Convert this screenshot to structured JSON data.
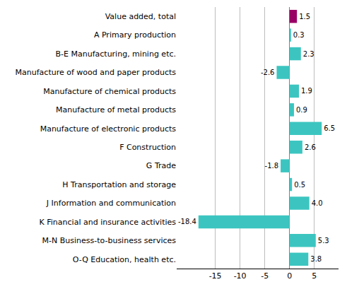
{
  "chart_data": {
    "type": "bar",
    "orientation": "horizontal",
    "categories": [
      "Value added, total",
      "A Primary production",
      "B-E Manufacturing, mining etc.",
      "Manufacture of wood and paper products",
      "Manufacture of chemical products",
      "Manufacture of metal products",
      "Manufacture of electronic products",
      "F Construction",
      "G Trade",
      "H Transportation and storage",
      "J Information and communication",
      "K Financial and insurance activities",
      "M-N Business-to-business services",
      "O-Q Education, health etc."
    ],
    "values": [
      1.5,
      0.3,
      2.3,
      -2.6,
      1.9,
      0.9,
      6.5,
      2.6,
      -1.8,
      0.5,
      4.0,
      -18.4,
      5.3,
      3.8
    ],
    "value_labels": [
      "1.5",
      "0.3",
      "2.3",
      "-2.6",
      "1.9",
      "0.9",
      "6.5",
      "2.6",
      "-1.8",
      "0.5",
      "4.0",
      "-18.4",
      "5.3",
      "3.8"
    ],
    "colors": [
      "#990066",
      "#3cc5c0",
      "#3cc5c0",
      "#3cc5c0",
      "#3cc5c0",
      "#3cc5c0",
      "#3cc5c0",
      "#3cc5c0",
      "#3cc5c0",
      "#3cc5c0",
      "#3cc5c0",
      "#3cc5c0",
      "#3cc5c0",
      "#3cc5c0"
    ],
    "xlim": [
      -22.8,
      9.9
    ],
    "xticks": [
      -15,
      -10,
      -5,
      0,
      5
    ],
    "grid": true,
    "data_labels": true
  }
}
